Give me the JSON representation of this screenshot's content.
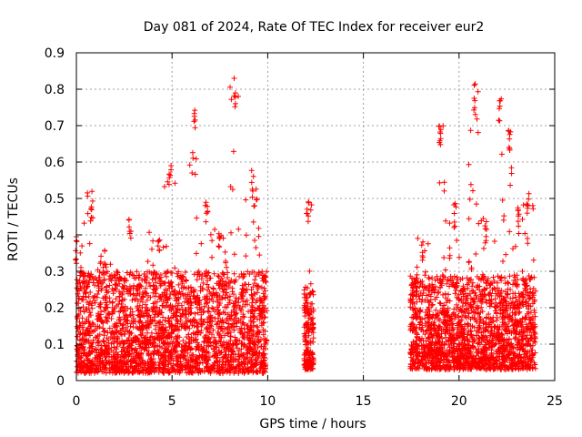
{
  "chart_data": {
    "type": "scatter",
    "title": "Day 081 of 2024, Rate Of TEC Index for receiver eur2",
    "xlabel": "GPS time / hours",
    "ylabel": "ROTI / TECUs",
    "xlim": [
      0,
      25
    ],
    "ylim": [
      0,
      0.9
    ],
    "x_ticks": [
      "0",
      "5",
      "10",
      "15",
      "20",
      "25"
    ],
    "y_ticks": [
      "0",
      "0.1",
      "0.2",
      "0.3",
      "0.4",
      "0.5",
      "0.6",
      "0.7",
      "0.8",
      "0.9"
    ],
    "grid": true,
    "marker": "+",
    "series_color": "#ff0000",
    "segments": [
      {
        "start": 0.0,
        "end": 9.95,
        "count": 2600,
        "base_min": 0.02,
        "base_max": 0.3
      },
      {
        "start": 11.9,
        "end": 12.4,
        "count": 180,
        "base_min": 0.03,
        "base_max": 0.26
      },
      {
        "start": 17.45,
        "end": 24.0,
        "count": 1900,
        "base_min": 0.03,
        "base_max": 0.29
      }
    ],
    "bursts": [
      {
        "x": 0.0,
        "width": 0.3,
        "peak": 0.41
      },
      {
        "x": 0.8,
        "width": 0.4,
        "peak": 0.52
      },
      {
        "x": 1.5,
        "width": 0.3,
        "peak": 0.38
      },
      {
        "x": 2.8,
        "width": 0.3,
        "peak": 0.45
      },
      {
        "x": 4.3,
        "width": 0.6,
        "peak": 0.42
      },
      {
        "x": 4.9,
        "width": 0.3,
        "peak": 0.61
      },
      {
        "x": 6.2,
        "width": 0.3,
        "peak": 0.75
      },
      {
        "x": 6.8,
        "width": 0.3,
        "peak": 0.5
      },
      {
        "x": 7.5,
        "width": 0.4,
        "peak": 0.42
      },
      {
        "x": 8.3,
        "width": 0.3,
        "peak": 0.83
      },
      {
        "x": 9.2,
        "width": 0.4,
        "peak": 0.58
      },
      {
        "x": 12.1,
        "width": 0.2,
        "peak": 0.5
      },
      {
        "x": 18.1,
        "width": 0.3,
        "peak": 0.4
      },
      {
        "x": 19.0,
        "width": 0.3,
        "peak": 0.7
      },
      {
        "x": 19.8,
        "width": 0.3,
        "peak": 0.5
      },
      {
        "x": 20.8,
        "width": 0.3,
        "peak": 0.82
      },
      {
        "x": 21.4,
        "width": 0.3,
        "peak": 0.45
      },
      {
        "x": 22.1,
        "width": 0.3,
        "peak": 0.79
      },
      {
        "x": 22.6,
        "width": 0.3,
        "peak": 0.71
      },
      {
        "x": 23.1,
        "width": 0.3,
        "peak": 0.5
      },
      {
        "x": 23.6,
        "width": 0.3,
        "peak": 0.52
      }
    ]
  }
}
